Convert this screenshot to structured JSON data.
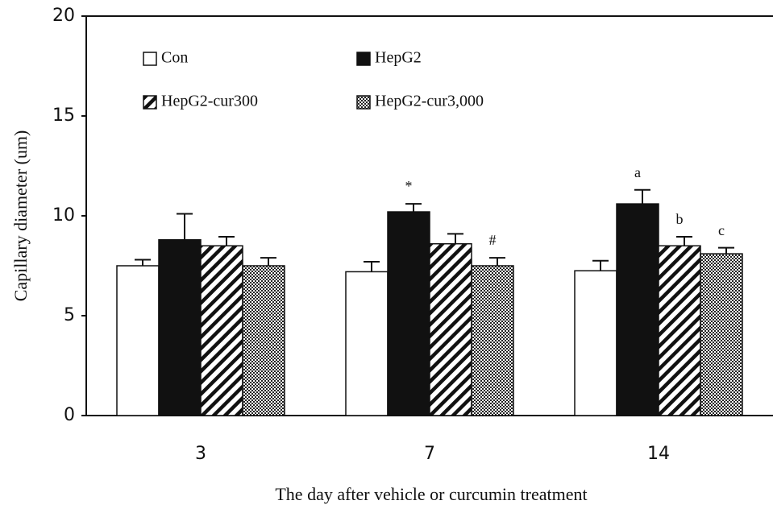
{
  "chart_data": {
    "type": "bar",
    "xlabel": "The day after vehicle or curcumin treatment",
    "ylabel": "Capillary diameter (um)",
    "categories": [
      "3",
      "7",
      "14"
    ],
    "series": [
      {
        "name": "Con",
        "color": "#ffffff",
        "pattern": "none",
        "values": [
          7.5,
          7.2,
          7.25
        ],
        "errors": [
          0.3,
          0.5,
          0.5
        ],
        "annotations": [
          null,
          null,
          null
        ]
      },
      {
        "name": "HepG2",
        "color": "#111111",
        "pattern": "solid",
        "values": [
          8.8,
          10.2,
          10.6
        ],
        "errors": [
          1.3,
          0.4,
          0.7
        ],
        "annotations": [
          null,
          "*",
          "a"
        ]
      },
      {
        "name": "HepG2-cur300",
        "color": "#111111",
        "pattern": "diagonal",
        "values": [
          8.5,
          8.6,
          8.5
        ],
        "errors": [
          0.45,
          0.5,
          0.45
        ],
        "annotations": [
          null,
          null,
          "b"
        ]
      },
      {
        "name": "HepG2-cur3,000",
        "color": "#111111",
        "pattern": "checker",
        "values": [
          7.5,
          7.5,
          8.1
        ],
        "errors": [
          0.4,
          0.4,
          0.3
        ],
        "annotations": [
          null,
          "#",
          "c"
        ]
      }
    ],
    "ylim": [
      0,
      20
    ],
    "yticks": [
      0,
      5,
      10,
      15,
      20
    ],
    "grid": false,
    "legend": "top-left"
  }
}
